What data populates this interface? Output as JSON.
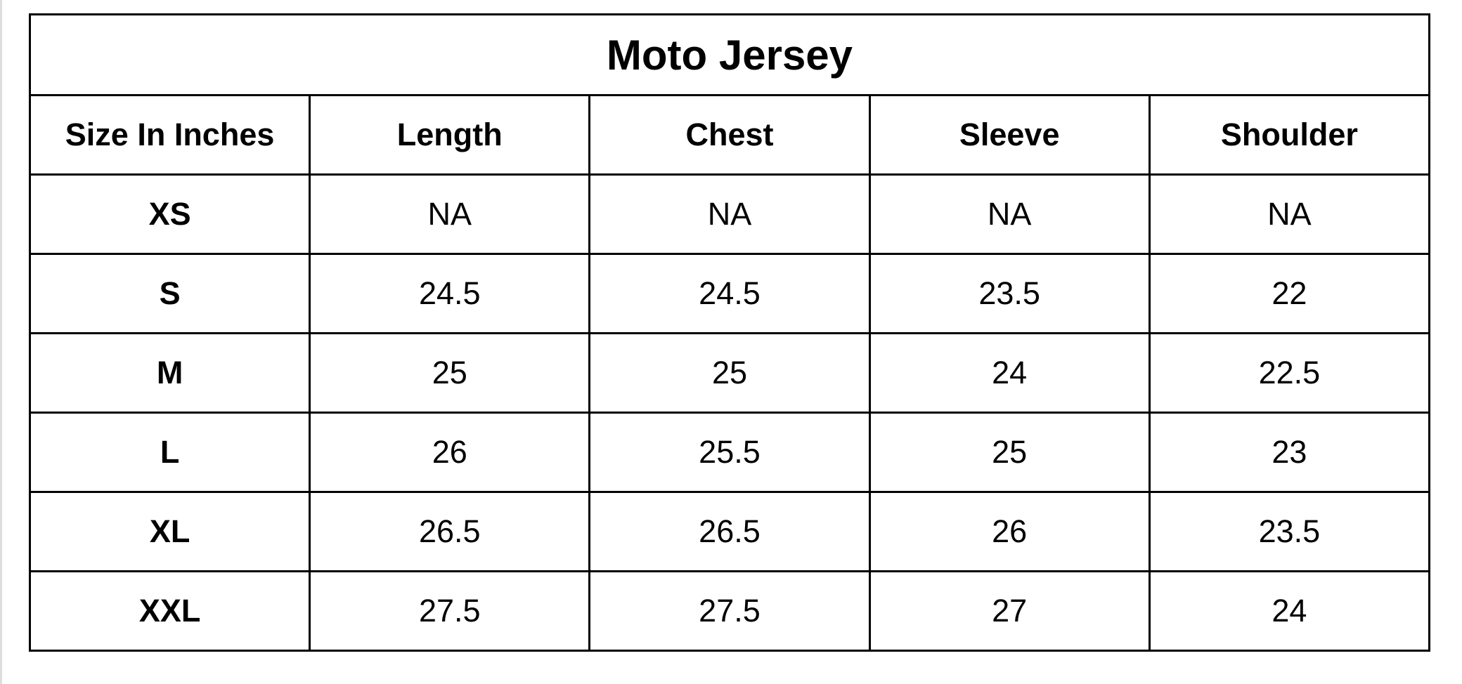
{
  "table": {
    "title": "Moto Jersey",
    "header": [
      "Size In Inches",
      "Length",
      "Chest",
      "Sleeve",
      "Shoulder"
    ],
    "rows": [
      [
        "XS",
        "NA",
        "NA",
        "NA",
        "NA"
      ],
      [
        "S",
        24.5,
        24.5,
        23.5,
        22
      ],
      [
        "M",
        25,
        25,
        24,
        22.5
      ],
      [
        "L",
        26,
        25.5,
        25,
        23
      ],
      [
        "XL",
        26.5,
        26.5,
        26,
        23.5
      ],
      [
        "XXL",
        27.5,
        27.5,
        27,
        24
      ]
    ]
  }
}
